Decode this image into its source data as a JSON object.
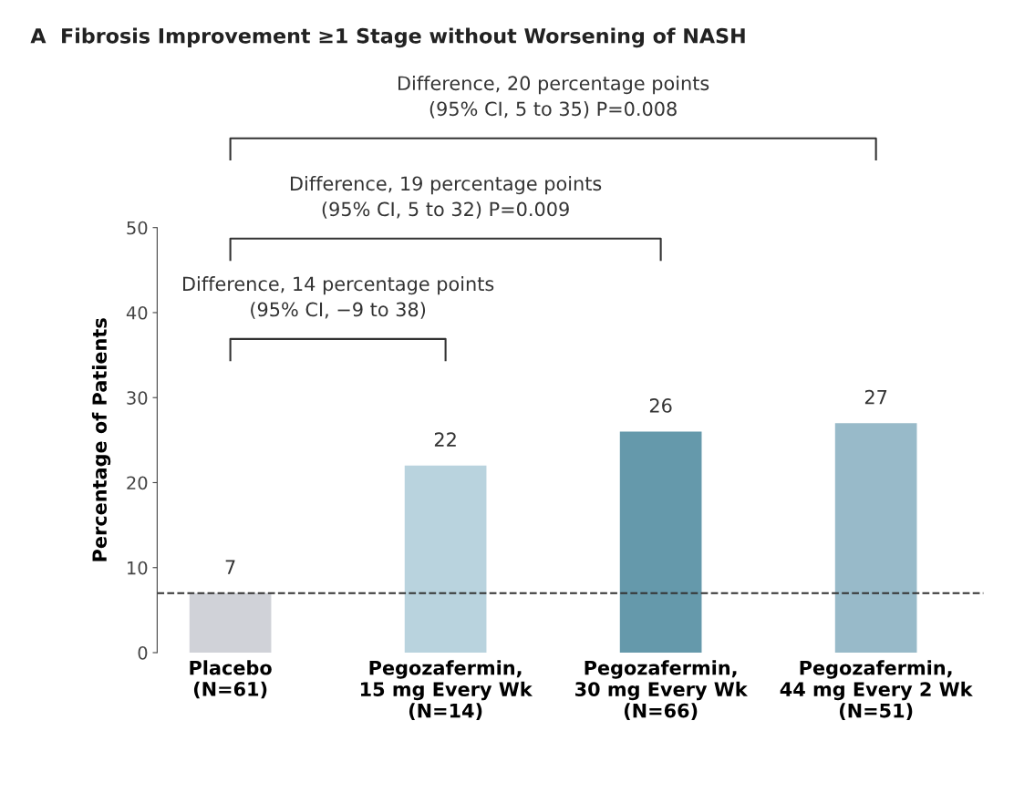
{
  "chart_data": {
    "type": "bar",
    "title": "A  Fibrosis Improvement ≥1 Stage without Worsening of NASH",
    "ylabel": "Percentage of Patients",
    "categories": [
      "Placebo\n(N=61)",
      "Pegozafermin,\n15 mg Every Wk\n(N=14)",
      "Pegozafermin,\n30 mg Every Wk\n(N=66)",
      "Pegozafermin,\n44 mg Every 2 Wk\n(N=51)"
    ],
    "values": [
      7,
      22,
      26,
      27
    ],
    "colors": [
      "#d0d2d8",
      "#b9d3de",
      "#6599ab",
      "#98bac9"
    ],
    "data_labels": true,
    "ylim": [
      0,
      50
    ],
    "yticks": [
      0,
      10,
      20,
      30,
      40,
      50
    ],
    "grid": false,
    "ref_lines": [
      {
        "axis": "y",
        "value": 7,
        "color": "#333333",
        "line_style": "dashed"
      }
    ],
    "annotations": [
      "Difference, 20 percentage points\n(95% CI, 5 to 35) P=0.008",
      "Difference, 19 percentage points\n(95% CI, 5 to 32) P=0.009",
      "Difference, 14 percentage points\n(95% CI, −9 to 38)"
    ]
  }
}
